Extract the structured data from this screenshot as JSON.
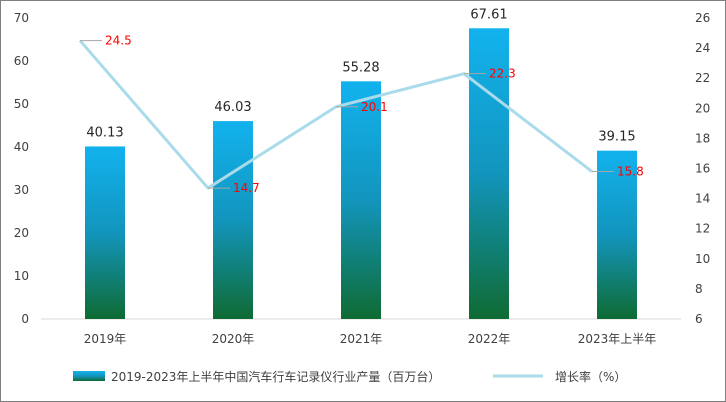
{
  "chart_data": {
    "type": "bar",
    "categories": [
      "2019年",
      "2020年",
      "2021年",
      "2022年",
      "2023年上半年"
    ],
    "series": [
      {
        "name": "2019-2023年上半年中国汽车行车记录仪行业产量（百万台）",
        "kind": "bar",
        "axis": "left",
        "values": [
          40.13,
          46.03,
          55.28,
          67.61,
          39.15
        ]
      },
      {
        "name": "增长率（%）",
        "kind": "line",
        "axis": "right",
        "values": [
          24.5,
          14.7,
          20.1,
          22.3,
          15.8
        ]
      }
    ],
    "y_left": {
      "min": 0,
      "max": 70,
      "step": 10
    },
    "y_right": {
      "min": 6,
      "max": 26,
      "step": 2
    },
    "grid": false,
    "legend": "bottom",
    "colors": {
      "bar_top": "#12b2ee",
      "bar_mid": "#1295bd",
      "bar_bottom": "#0f6b33",
      "line": "#a9dbea",
      "rate_label": "#ff0000",
      "leader": "#a6a6a6"
    }
  }
}
